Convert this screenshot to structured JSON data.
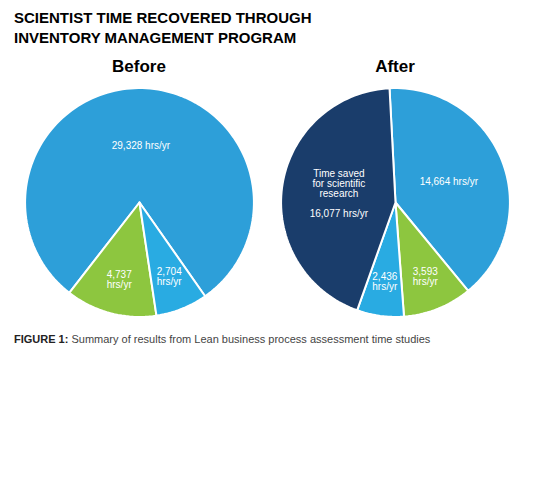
{
  "title": "SCIENTIST TIME RECOVERED THROUGH\nINVENTORY MANAGEMENT PROGRAM",
  "caption": "FIGURE 1: Summary of results from Lean business process assessment time studies",
  "chart_data": [
    {
      "type": "pie",
      "title": "Before",
      "values": [
        29328,
        4737,
        2704
      ],
      "value_labels": [
        "29,328 hrs/yr",
        "4,737\nhrs/yr",
        "2,704\nhrs/yr"
      ],
      "colors": [
        "#2d9fd9",
        "#8dc63f",
        "#29abe2"
      ],
      "data_labels": true
    },
    {
      "type": "pie",
      "title": "After",
      "values": [
        14664,
        3593,
        2436,
        16077
      ],
      "value_labels": [
        "14,664 hrs/yr",
        "3,593\nhrs/yr",
        "2,436\nhrs/yr",
        "Time saved\nfor scientific\nresearch\n\n16,077 hrs/yr"
      ],
      "colors": [
        "#2d9fd9",
        "#8dc63f",
        "#29abe2",
        "#1a3d6b"
      ],
      "data_labels": true
    }
  ]
}
